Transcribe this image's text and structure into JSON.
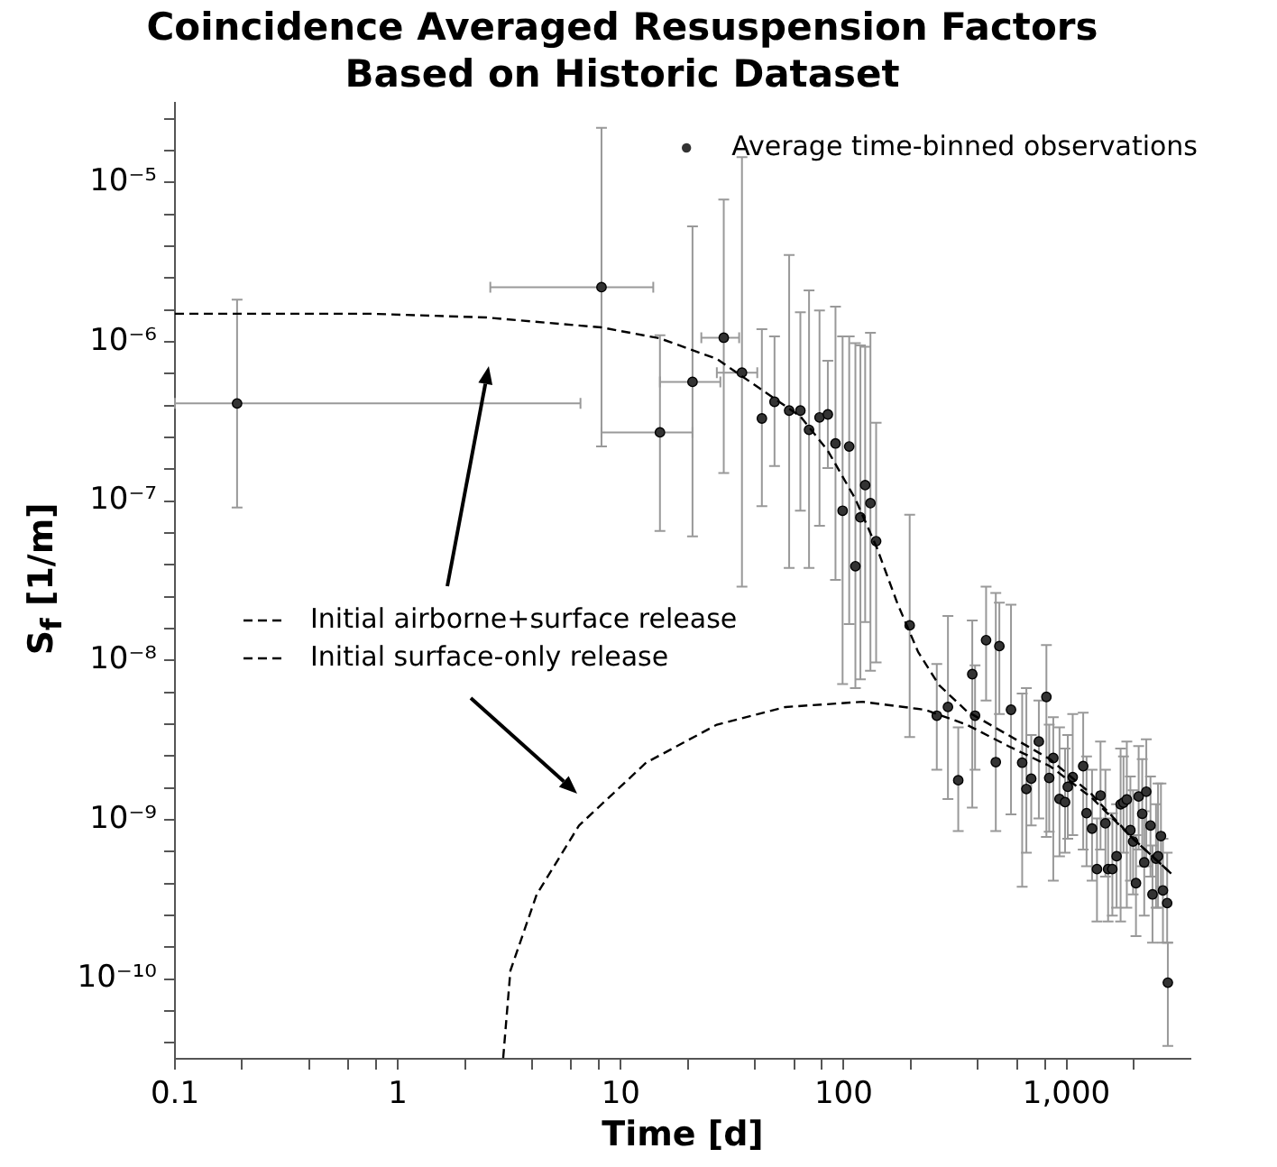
{
  "chart_data": {
    "type": "scatter",
    "title": "Coincidence Averaged Resuspension Factors Based on Historic Dataset",
    "xlabel": "Time [d]",
    "ylabel": "S$_{f}$ [1/m]",
    "log": "xy",
    "legend": "top right",
    "xlim": [
      0.1,
      3600
    ],
    "ylim": [
      3.16e-11,
      3.16e-05
    ],
    "xticks": [
      0.1,
      {
        "value": 0.2,
        "label": null
      },
      {
        "value": 0.4,
        "label": null
      },
      {
        "value": 0.6,
        "label": null
      },
      {
        "value": 0.8,
        "label": null
      },
      1,
      {
        "value": 2,
        "label": null
      },
      {
        "value": 4,
        "label": null
      },
      {
        "value": 6,
        "label": null
      },
      {
        "value": 8,
        "label": null
      },
      10,
      {
        "value": 20,
        "label": null
      },
      {
        "value": 40,
        "label": null
      },
      {
        "value": 60,
        "label": null
      },
      {
        "value": 80,
        "label": null
      },
      100,
      {
        "value": 200,
        "label": null
      },
      {
        "value": 400,
        "label": null
      },
      {
        "value": 600,
        "label": null
      },
      {
        "value": 800,
        "label": null
      },
      {
        "value": 1000,
        "label": "1,000"
      },
      {
        "value": 2000,
        "label": null
      }
    ],
    "yticks": [
      {
        "value": 3.981e-11,
        "label": null
      },
      {
        "value": 6.31e-11,
        "label": null
      },
      {
        "value": 1e-10,
        "label": "10⁻¹⁰"
      },
      {
        "value": 1.585e-10,
        "label": null
      },
      {
        "value": 2.512e-10,
        "label": null
      },
      {
        "value": 3.981e-10,
        "label": null
      },
      {
        "value": 6.31e-10,
        "label": null
      },
      {
        "value": 1e-09,
        "label": "10⁻⁹"
      },
      {
        "value": 1.585e-09,
        "label": null
      },
      {
        "value": 2.512e-09,
        "label": null
      },
      {
        "value": 3.981e-09,
        "label": null
      },
      {
        "value": 6.31e-09,
        "label": null
      },
      {
        "value": 1e-08,
        "label": "10⁻⁸"
      },
      {
        "value": 1.585e-08,
        "label": null
      },
      {
        "value": 2.512e-08,
        "label": null
      },
      {
        "value": 3.981e-08,
        "label": null
      },
      {
        "value": 6.31e-08,
        "label": null
      },
      {
        "value": 1e-07,
        "label": "10⁻⁷"
      },
      {
        "value": 1.585e-07,
        "label": null
      },
      {
        "value": 2.512e-07,
        "label": null
      },
      {
        "value": 3.981e-07,
        "label": null
      },
      {
        "value": 6.31e-07,
        "label": null
      },
      {
        "value": 1e-06,
        "label": "10⁻⁶"
      },
      {
        "value": 1.585e-06,
        "label": null
      },
      {
        "value": 2.512e-06,
        "label": null
      },
      {
        "value": 3.981e-06,
        "label": null
      },
      {
        "value": 6.31e-06,
        "label": null
      },
      {
        "value": 1e-05,
        "label": "10⁻⁵"
      },
      {
        "value": 1.585e-05,
        "label": null
      },
      {
        "value": 2.512e-05,
        "label": null
      }
    ],
    "series": [
      {
        "name": "Average time-binned observations",
        "marker": "circle",
        "color": "#333333",
        "x": [
          0.19,
          8.2,
          15,
          21,
          29,
          35,
          43,
          49,
          57,
          64,
          70,
          78,
          85,
          92,
          99,
          106,
          113,
          119,
          125,
          132,
          140,
          198,
          262,
          294,
          327,
          378,
          389,
          436,
          482,
          500,
          564,
          633,
          661,
          695,
          752,
          813,
          837,
          873,
          931,
          986,
          1014,
          1067,
          1189,
          1231,
          1303,
          1371,
          1422,
          1496,
          1538,
          1607,
          1679,
          1750,
          1803,
          1866,
          1936,
          1991,
          2051,
          2109,
          2188,
          2234,
          2282,
          2383,
          2433,
          2523,
          2576,
          2655,
          2710,
          2831,
          2851
        ],
        "values": [
          4.1e-07,
          2.2e-06,
          2.7e-07,
          5.6e-07,
          1.06e-06,
          6.4e-07,
          3.3e-07,
          4.2e-07,
          3.7e-07,
          3.7e-07,
          2.8e-07,
          3.35e-07,
          3.5e-07,
          2.3e-07,
          8.7e-08,
          2.2e-07,
          3.9e-08,
          7.9e-08,
          1.26e-07,
          9.7e-08,
          5.6e-08,
          1.66e-08,
          4.5e-09,
          5.1e-09,
          1.77e-09,
          8.2e-09,
          4.5e-09,
          1.34e-08,
          2.3e-09,
          1.23e-08,
          4.9e-09,
          2.28e-09,
          1.56e-09,
          1.81e-09,
          3.1e-09,
          5.9e-09,
          1.83e-09,
          2.44e-09,
          1.35e-09,
          1.29e-09,
          1.61e-09,
          1.85e-09,
          2.17e-09,
          1.1e-09,
          8.8e-10,
          4.9e-10,
          1.42e-09,
          9.5e-10,
          4.9e-10,
          4.9e-10,
          5.9e-10,
          1.25e-09,
          1.28e-09,
          1.34e-09,
          8.6e-10,
          7.3e-10,
          4e-10,
          1.4e-09,
          1.09e-09,
          5.4e-10,
          1.5e-09,
          9.2e-10,
          3.4e-10,
          5.7e-10,
          5.9e-10,
          7.9e-10,
          3.6e-10,
          3e-10,
          9.5e-11
        ],
        "errors": [
          [
            9.1e-08,
            1.84e-06
          ],
          [
            2.2e-07,
            2.2e-05
          ],
          [
            6.5e-08,
            1.1e-06
          ],
          [
            6e-08,
            5.3e-06
          ],
          [
            1.5e-07,
            7.8e-06
          ],
          [
            2.9e-08,
            1.44e-05
          ],
          [
            9.3e-08,
            1.2e-06
          ],
          [
            1.66e-07,
            1.08e-06
          ],
          [
            3.8e-08,
            3.5e-06
          ],
          [
            8.7e-08,
            1.53e-06
          ],
          [
            3.8e-08,
            2.1e-06
          ],
          [
            7e-08,
            1.57e-06
          ],
          [
            1.61e-07,
            7.6e-07
          ],
          [
            3.2e-08,
            1.66e-06
          ],
          [
            7.1e-09,
            1.08e-06
          ],
          [
            1.69e-08,
            1.08e-06
          ],
          [
            6.7e-09,
            9.8e-07
          ],
          [
            7.6e-09,
            9.5e-07
          ],
          [
            1.74e-08,
            9.3e-07
          ],
          [
            8.6e-09,
            1.14e-06
          ],
          [
            9.7e-09,
            3.1e-07
          ],
          [
            3.3e-09,
            8.2e-08
          ],
          [
            2.06e-09,
            9.5e-09
          ],
          [
            1.35e-09,
            1.9e-08
          ],
          [
            8.5e-10,
            3.8e-09
          ],
          [
            1.19e-09,
            1.78e-08
          ],
          [
            2.06e-09,
            9.3e-09
          ],
          [
            5.6e-09,
            2.9e-08
          ],
          [
            8.5e-10,
            2.65e-08
          ],
          [
            4.6e-09,
            2.3e-08
          ],
          [
            1.08e-09,
            2.24e-08
          ],
          [
            3.8e-10,
            6.2e-09
          ],
          [
            6.2e-10,
            6.7e-09
          ],
          [
            9.2e-10,
            3.4e-09
          ],
          [
            1.02e-09,
            5.6e-09
          ],
          [
            7.8e-10,
            1.25e-08
          ],
          [
            8.4e-10,
            3.95e-09
          ],
          [
            4.15e-10,
            4.4e-09
          ],
          [
            5.9e-10,
            3.8e-09
          ],
          [
            6.2e-10,
            2.8e-09
          ],
          [
            7.6e-10,
            3.4e-09
          ],
          [
            8e-10,
            4.6e-09
          ],
          [
            6.5e-10,
            4.7e-09
          ],
          [
            5.1e-10,
            2.5e-09
          ],
          [
            4.15e-10,
            2.06e-09
          ],
          [
            2.3e-10,
            1.02e-09
          ],
          [
            6.5e-10,
            3.1e-09
          ],
          [
            4.4e-10,
            2.06e-09
          ],
          [
            2.3e-10,
            1.02e-09
          ],
          [
            2.5e-10,
            1.1e-09
          ],
          [
            2.8e-10,
            1.25e-09
          ],
          [
            2.3e-10,
            2.8e-09
          ],
          [
            6.2e-10,
            2.5e-09
          ],
          [
            2.8e-10,
            3.1e-09
          ],
          [
            4.15e-10,
            1.87e-09
          ],
          [
            3.4e-10,
            1.53e-09
          ],
          [
            1.86e-10,
            8e-10
          ],
          [
            6.5e-10,
            2.9e-09
          ],
          [
            5.1e-10,
            2.4e-09
          ],
          [
            2.5e-10,
            1.13e-09
          ],
          [
            5.1e-10,
            3.2e-09
          ],
          [
            4.4e-10,
            1.87e-09
          ],
          [
            1.69e-10,
            6.9e-10
          ],
          [
            2.8e-10,
            1.25e-09
          ],
          [
            2.8e-10,
            1.69e-09
          ],
          [
            3.8e-10,
            1.69e-09
          ],
          [
            1.69e-10,
            7.6e-10
          ],
          [
            1.69e-10,
            6.2e-10
          ],
          [
            3.8e-11,
            1.69e-10
          ]
        ],
        "xerrors": [
          [
            0.1,
            6.6
          ],
          [
            2.6,
            14
          ],
          [
            8.2,
            21
          ],
          [
            15,
            28
          ],
          [
            23,
            34
          ],
          [
            27,
            41
          ],
          null,
          null,
          null,
          null,
          null,
          null,
          null,
          null,
          null,
          null,
          null,
          null,
          null,
          null,
          null,
          null,
          null,
          null,
          null,
          null,
          null,
          null,
          null,
          null,
          null,
          null,
          null,
          null,
          null,
          null,
          null,
          null,
          null,
          null,
          null,
          null,
          null,
          null,
          null,
          null,
          null,
          null,
          null,
          null,
          null,
          null,
          null,
          null,
          null,
          null,
          null,
          null,
          null,
          null,
          null,
          null,
          null,
          null,
          null,
          null,
          null,
          null,
          null
        ]
      },
      {
        "name": "Initial airborne+surface release",
        "type": "line",
        "line_style": "dashed",
        "color": "#000000",
        "x": [
          0.1,
          0.75,
          2.5,
          8.2,
          15,
          27,
          42,
          64,
          85,
          113,
          141,
          174,
          216,
          268,
          357,
          548,
          843,
          1294,
          1991,
          2951
        ],
        "values": [
          1.5e-06,
          1.5e-06,
          1.42e-06,
          1.23e-06,
          1.05e-06,
          7.8e-07,
          5.1e-07,
          3.4e-07,
          2.07e-07,
          1.03e-07,
          5.1e-08,
          2.3e-08,
          1.13e-08,
          7e-09,
          4.8e-09,
          3.4e-09,
          2.4e-09,
          1.45e-09,
          7.6e-10,
          4.6e-10
        ]
      },
      {
        "name": "Initial surface-only release",
        "type": "line",
        "line_style": "dashed",
        "color": "#000000",
        "x": [
          2.97,
          3.2,
          4.2,
          6.5,
          13,
          27,
          55,
          122,
          232,
          357,
          548,
          843,
          1294,
          1991,
          2951
        ],
        "values": [
          3.2e-11,
          1.13e-10,
          3.4e-10,
          9.2e-10,
          2.28e-09,
          3.95e-09,
          5.1e-09,
          5.5e-09,
          4.9e-09,
          3.95e-09,
          2.9e-09,
          2.17e-09,
          1.38e-09,
          7.6e-10,
          4.6e-10
        ]
      }
    ]
  }
}
